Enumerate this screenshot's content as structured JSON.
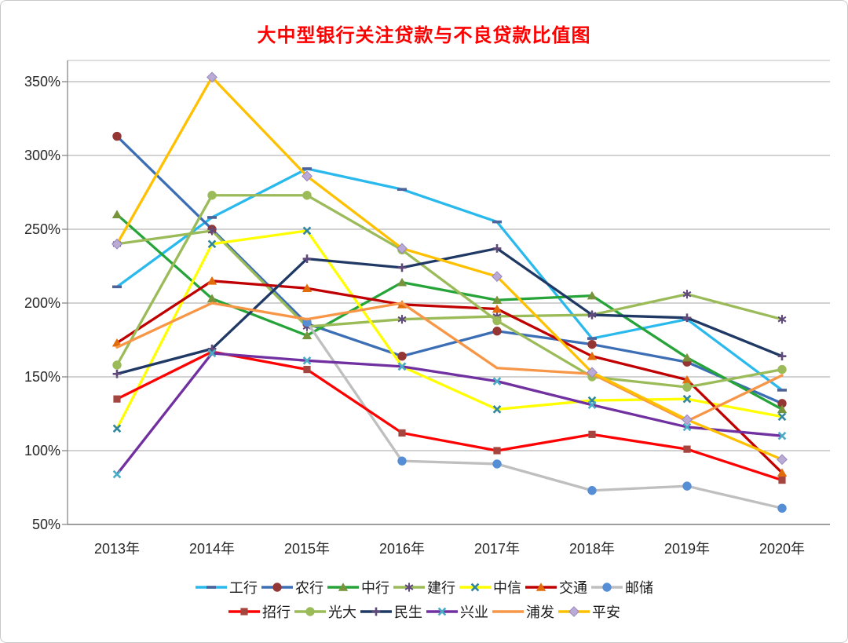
{
  "title": {
    "text": "大中型银行关注贷款与不良贷款比值图",
    "color": "#FF0000"
  },
  "chart_data": {
    "type": "line",
    "title": "大中型银行关注贷款与不良贷款比值图",
    "x_labels": [
      "2013年",
      "2014年",
      "2015年",
      "2016年",
      "2017年",
      "2018年",
      "2019年",
      "2020年"
    ],
    "y_axis": {
      "ticks": [
        "350%",
        "300%",
        "250%",
        "200%",
        "150%",
        "100%",
        "50%"
      ],
      "min": 50,
      "max": 350,
      "step": 50,
      "unit": "%"
    },
    "grid": true,
    "legend_position": "bottom",
    "axis_color": "#7f7f7f",
    "gridline_color": "#a6a6a6",
    "series": [
      {
        "name": "工行",
        "line_color": "#29B9EC",
        "marker": "dash",
        "marker_color": "#4F639B",
        "values": [
          211,
          258,
          291,
          277,
          255,
          176,
          189,
          141
        ]
      },
      {
        "name": "农行",
        "line_color": "#3B6EB5",
        "marker": "circle",
        "marker_color": "#943634",
        "values": [
          313,
          250,
          186,
          164,
          181,
          172,
          160,
          132
        ]
      },
      {
        "name": "中行",
        "line_color": "#27A439",
        "marker": "triangle",
        "marker_color": "#77933C",
        "values": [
          260,
          203,
          178,
          214,
          202,
          205,
          163,
          128
        ]
      },
      {
        "name": "建行",
        "line_color": "#9BBB59",
        "marker": "asterisk",
        "marker_color": "#604A7B",
        "values": [
          240,
          249,
          184,
          189,
          191,
          192,
          206,
          189
        ]
      },
      {
        "name": "中信",
        "line_color": "#FFFF00",
        "marker": "x",
        "marker_color": "#31859C",
        "values": [
          115,
          240,
          249,
          157,
          128,
          134,
          135,
          123
        ]
      },
      {
        "name": "交通",
        "line_color": "#C00000",
        "marker": "triangle",
        "marker_color": "#E36C0A",
        "values": [
          173,
          215,
          210,
          199,
          196,
          164,
          148,
          85
        ]
      },
      {
        "name": "邮储",
        "line_color": "#BFBFBF",
        "marker": "circle",
        "marker_color": "#558ED5",
        "values": [
          null,
          null,
          187,
          93,
          91,
          73,
          76,
          61
        ]
      },
      {
        "name": "招行",
        "line_color": "#FF0000",
        "marker": "square",
        "marker_color": "#A5453F",
        "values": [
          135,
          167,
          155,
          112,
          100,
          111,
          101,
          80
        ]
      },
      {
        "name": "光大",
        "line_color": "#9BBB59",
        "marker": "circle",
        "marker_color": "#9BBB59",
        "values": [
          158,
          273,
          273,
          236,
          188,
          150,
          143,
          155
        ]
      },
      {
        "name": "民生",
        "line_color": "#1F3864",
        "marker": "plus",
        "marker_color": "#604A7B",
        "values": [
          152,
          169,
          230,
          224,
          237,
          192,
          190,
          164
        ]
      },
      {
        "name": "兴业",
        "line_color": "#7030A0",
        "marker": "x",
        "marker_color": "#4BACC6",
        "values": [
          84,
          166,
          161,
          157,
          147,
          131,
          116,
          110
        ]
      },
      {
        "name": "浦发",
        "line_color": "#F79646",
        "marker": "none",
        "marker_color": "#F79646",
        "values": [
          170,
          200,
          189,
          200,
          156,
          152,
          120,
          151
        ]
      },
      {
        "name": "平安",
        "line_color": "#FFC000",
        "marker": "diamond",
        "marker_color": "#B9ABD6",
        "values": [
          240,
          353,
          286,
          237,
          218,
          153,
          121,
          94
        ]
      }
    ]
  }
}
